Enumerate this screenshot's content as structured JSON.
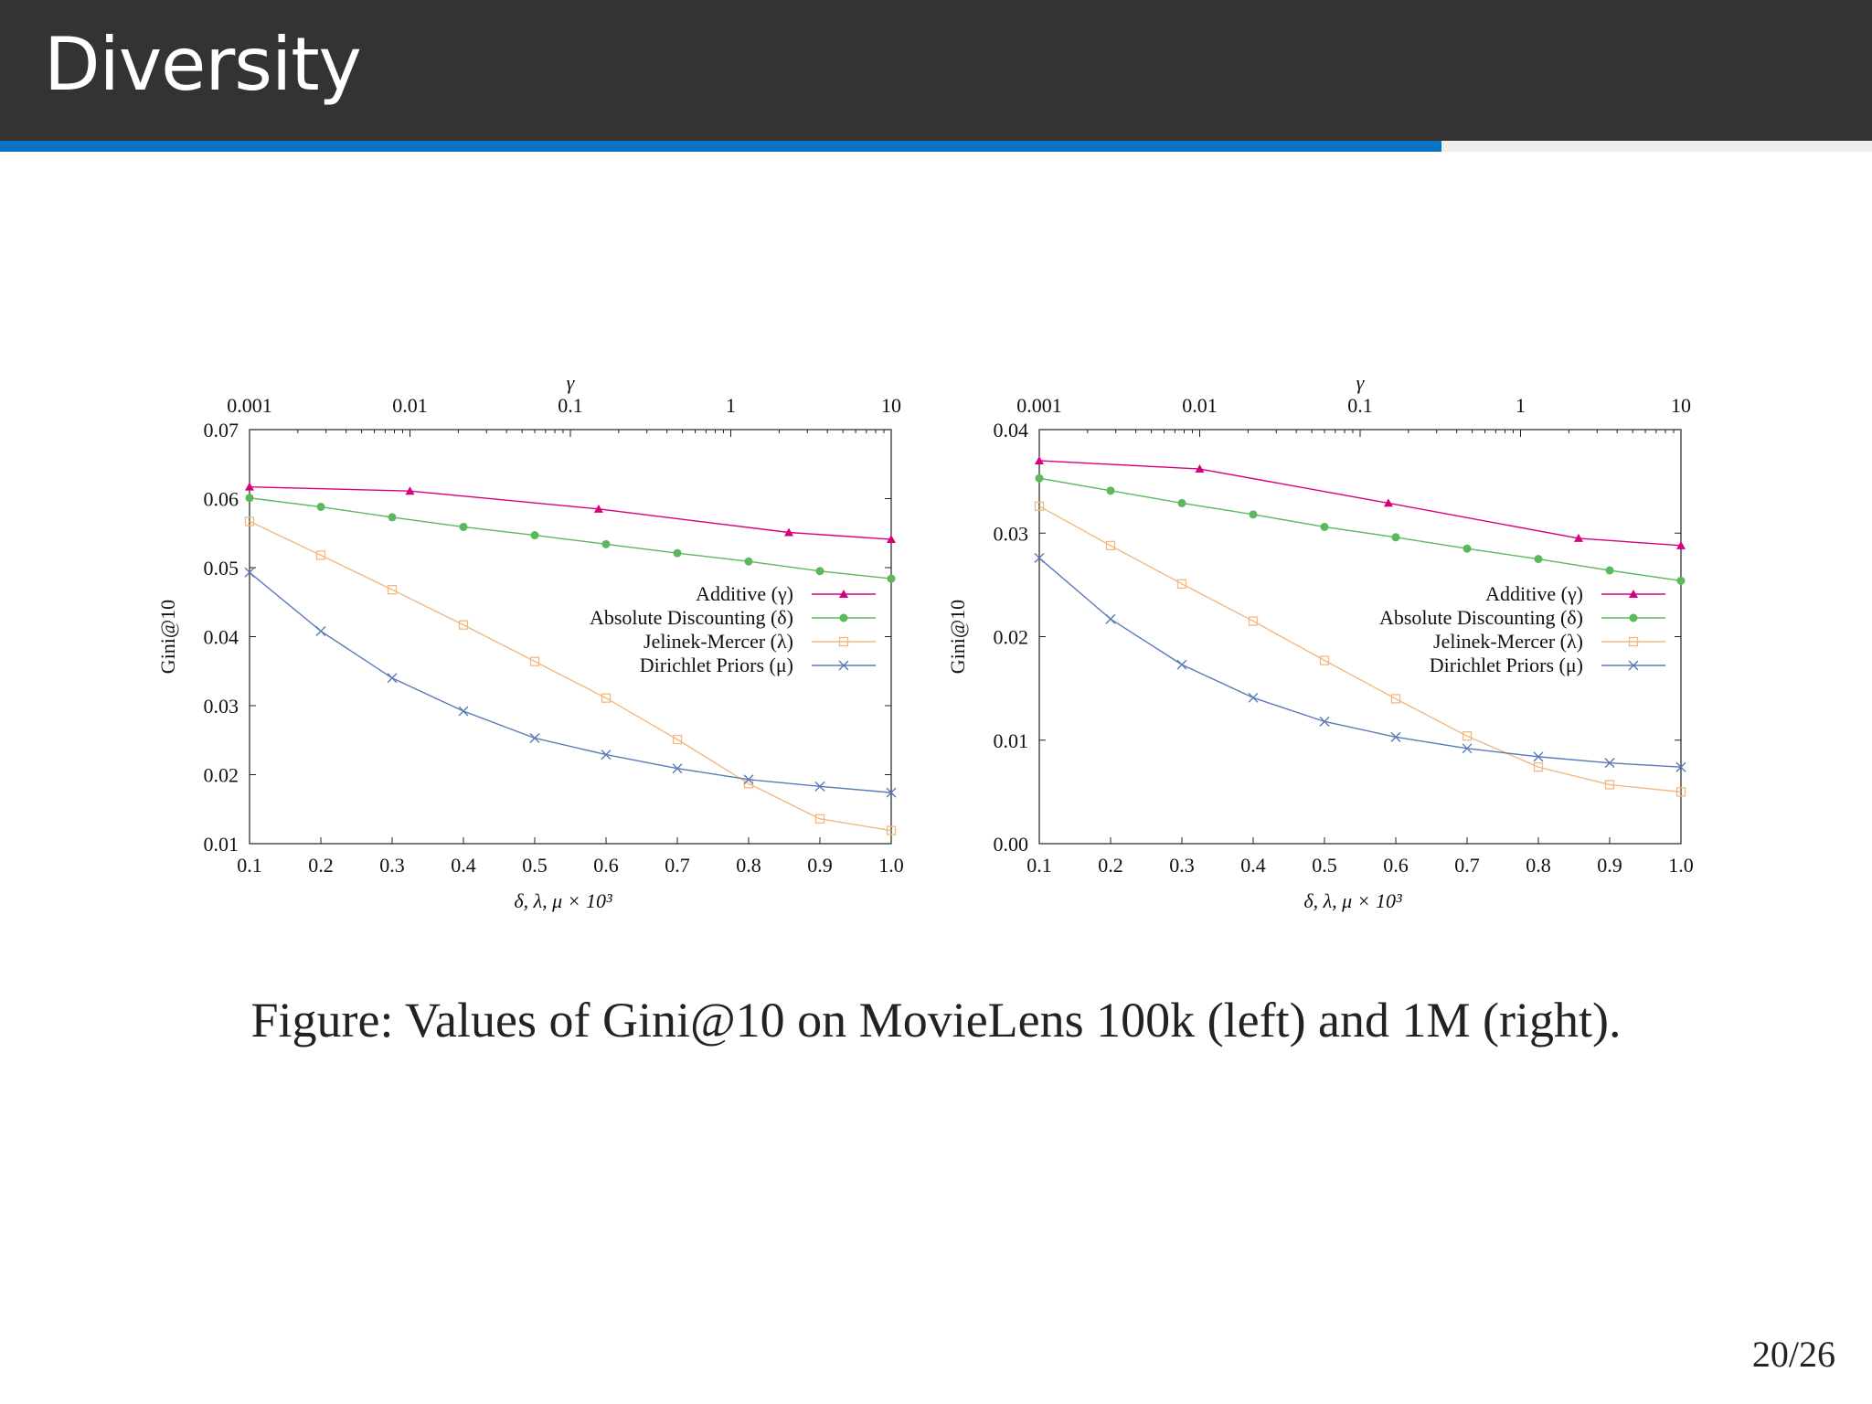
{
  "slide": {
    "title": "Diversity",
    "caption": "Figure: Values of Gini@10 on MovieLens 100k (left) and 1M (right).",
    "page": "20/26",
    "progress_fraction": 0.77
  },
  "colors": {
    "header_bg": "#333333",
    "progress": "#0b73c4",
    "additive": "#d6007f",
    "absolute": "#5cb85c",
    "jelinek": "#f2b880",
    "dirichlet": "#5a7ab8"
  },
  "chart_data": [
    {
      "type": "line",
      "dataset": "MovieLens 100k",
      "xlabel": "δ, λ, μ × 10³",
      "ylabel": "Gini@10",
      "top_axis_label": "γ",
      "x": [
        0.1,
        0.2,
        0.3,
        0.4,
        0.5,
        0.6,
        0.7,
        0.8,
        0.9,
        1.0
      ],
      "xlim": [
        0.1,
        1.0
      ],
      "ylim": [
        0.01,
        0.07
      ],
      "x_ticks": [
        "0.1",
        "0.2",
        "0.3",
        "0.4",
        "0.5",
        "0.6",
        "0.7",
        "0.8",
        "0.9",
        "1.0"
      ],
      "y_ticks": [
        "0.01",
        "0.02",
        "0.03",
        "0.04",
        "0.05",
        "0.06",
        "0.07"
      ],
      "top_ticks": [
        "0.001",
        "0.01",
        "0.1",
        "1",
        "10"
      ],
      "top_axis_scale": "log",
      "legend_position": "right",
      "series": [
        {
          "name": "Additive (γ)",
          "key": "additive",
          "marker": "triangle",
          "axis": "top",
          "x": [
            0.001,
            0.01,
            0.15,
            2.3,
            10
          ],
          "values": [
            0.0617,
            0.0611,
            0.0585,
            0.0551,
            0.0541
          ]
        },
        {
          "name": "Absolute Discounting (δ)",
          "key": "absolute",
          "marker": "circle",
          "values": [
            0.0601,
            0.0588,
            0.0573,
            0.0559,
            0.0547,
            0.0534,
            0.0521,
            0.0509,
            0.0495,
            0.0484
          ]
        },
        {
          "name": "Jelinek-Mercer (λ)",
          "key": "jelinek",
          "marker": "square",
          "values": [
            0.0567,
            0.0518,
            0.0468,
            0.0417,
            0.0364,
            0.0311,
            0.0251,
            0.0187,
            0.0136,
            0.0119
          ]
        },
        {
          "name": "Dirichlet Priors (μ)",
          "key": "dirichlet",
          "marker": "cross",
          "values": [
            0.0493,
            0.0408,
            0.034,
            0.0292,
            0.0253,
            0.0229,
            0.0209,
            0.0193,
            0.0183,
            0.0174
          ]
        }
      ]
    },
    {
      "type": "line",
      "dataset": "MovieLens 1M",
      "xlabel": "δ, λ, μ × 10³",
      "ylabel": "Gini@10",
      "top_axis_label": "γ",
      "x": [
        0.1,
        0.2,
        0.3,
        0.4,
        0.5,
        0.6,
        0.7,
        0.8,
        0.9,
        1.0
      ],
      "xlim": [
        0.1,
        1.0
      ],
      "ylim": [
        0.0,
        0.04
      ],
      "x_ticks": [
        "0.1",
        "0.2",
        "0.3",
        "0.4",
        "0.5",
        "0.6",
        "0.7",
        "0.8",
        "0.9",
        "1.0"
      ],
      "y_ticks": [
        "0.00",
        "0.01",
        "0.02",
        "0.03",
        "0.04"
      ],
      "top_ticks": [
        "0.001",
        "0.01",
        "0.1",
        "1",
        "10"
      ],
      "top_axis_scale": "log",
      "legend_position": "right",
      "series": [
        {
          "name": "Additive (γ)",
          "key": "additive",
          "marker": "triangle",
          "axis": "top",
          "x": [
            0.001,
            0.01,
            0.15,
            2.3,
            10
          ],
          "values": [
            0.037,
            0.0362,
            0.0329,
            0.0295,
            0.0288
          ]
        },
        {
          "name": "Absolute Discounting (δ)",
          "key": "absolute",
          "marker": "circle",
          "values": [
            0.0353,
            0.0341,
            0.0329,
            0.0318,
            0.0306,
            0.0296,
            0.0285,
            0.0275,
            0.0264,
            0.0254
          ]
        },
        {
          "name": "Jelinek-Mercer (λ)",
          "key": "jelinek",
          "marker": "square",
          "values": [
            0.0326,
            0.0288,
            0.0251,
            0.0215,
            0.0177,
            0.014,
            0.0104,
            0.0074,
            0.0057,
            0.005
          ]
        },
        {
          "name": "Dirichlet Priors (μ)",
          "key": "dirichlet",
          "marker": "cross",
          "values": [
            0.0276,
            0.0217,
            0.0173,
            0.0141,
            0.0118,
            0.0103,
            0.0092,
            0.0084,
            0.0078,
            0.0074
          ]
        }
      ]
    }
  ]
}
